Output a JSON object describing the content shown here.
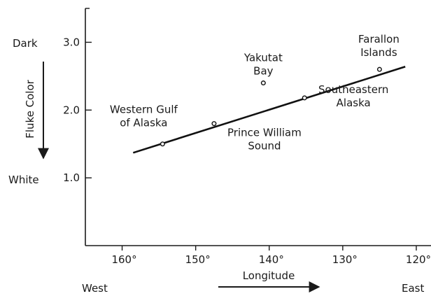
{
  "chart_data": {
    "type": "scatter",
    "title": "",
    "xlabel": "Longitude",
    "ylabel": "Fluke Color",
    "x_direction_labels": {
      "left": "West",
      "right": "East"
    },
    "y_direction_labels": {
      "top": "Dark",
      "bottom": "White"
    },
    "xlim": [
      165,
      118
    ],
    "ylim": [
      0,
      3.5
    ],
    "x_ticks": [
      160,
      150,
      140,
      130,
      120
    ],
    "x_tick_labels": [
      "160°",
      "150°",
      "140°",
      "130°",
      "120°"
    ],
    "y_ticks": [
      1.0,
      2.0,
      3.0
    ],
    "y_tick_labels": [
      "1.0",
      "2.0",
      "3.0"
    ],
    "points": [
      {
        "label_lines": [
          "Western Gulf",
          "of Alaska"
        ],
        "x": 154.5,
        "y": 1.5
      },
      {
        "label_lines": [
          "Prince William",
          "Sound"
        ],
        "x": 147.5,
        "y": 1.8
      },
      {
        "label_lines": [
          "Yakutat",
          "Bay"
        ],
        "x": 140.8,
        "y": 2.4
      },
      {
        "label_lines": [
          "Southeastern",
          "Alaska"
        ],
        "x": 135.2,
        "y": 2.18
      },
      {
        "label_lines": [
          "Farallon",
          "Islands"
        ],
        "x": 125,
        "y": 2.6
      }
    ],
    "regression_line": {
      "start": {
        "x": 158.5,
        "y": 1.37
      },
      "end": {
        "x": 121.5,
        "y": 2.64
      }
    },
    "grid": false
  }
}
